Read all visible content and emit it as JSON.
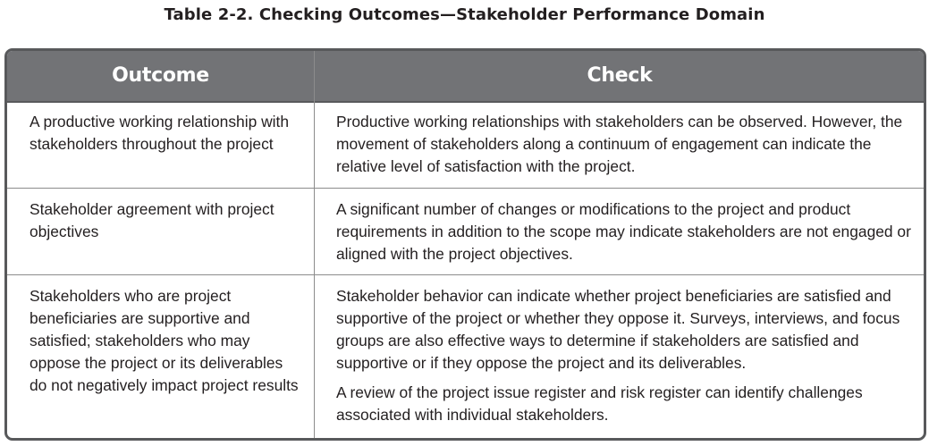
{
  "caption": "Table 2-2. Checking Outcomes—Stakeholder Performance Domain",
  "headers": {
    "outcome": "Outcome",
    "check": "Check"
  },
  "rows": [
    {
      "outcome": "A productive working relationship with stakeholders throughout the project",
      "check": [
        "Productive working relationships with stakeholders can be observed. However, the movement of stakeholders along a continuum of engagement can indicate the relative level of satisfaction with the project."
      ]
    },
    {
      "outcome": "Stakeholder agreement with project objectives",
      "check": [
        "A significant number of changes or modifications to the project and product requirements in addition to the scope may indicate stakeholders are not engaged or aligned with the project objectives."
      ]
    },
    {
      "outcome": "Stakeholders who are project beneficiaries are supportive and satisfied; stakeholders who may oppose the project or its deliverables do not negatively impact project results",
      "check": [
        "Stakeholder behavior can indicate whether project beneficiaries are satisfied and supportive of the project or whether they oppose it. Surveys, interviews, and focus groups are also effective ways to determine if stakeholders are satisfied and supportive or if they oppose the project and its deliverables.",
        "A review of the project issue register and risk register can identify challenges associated with individual stakeholders."
      ]
    }
  ]
}
